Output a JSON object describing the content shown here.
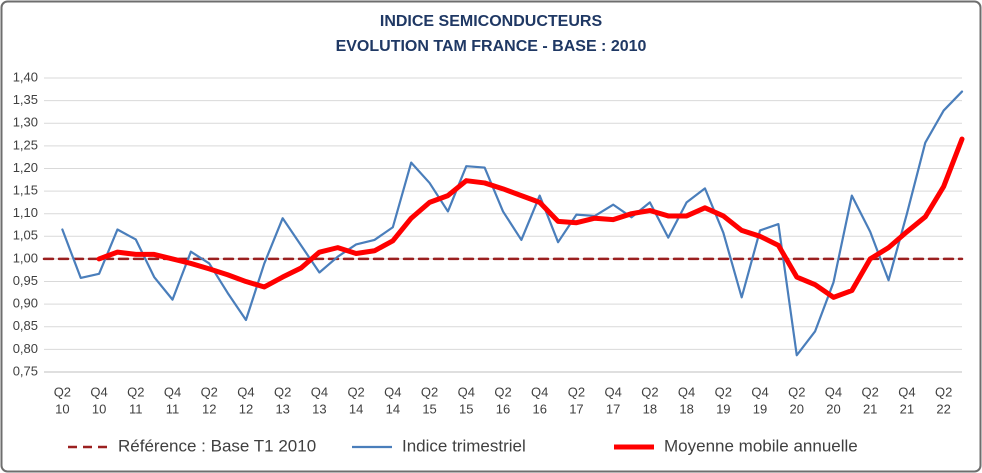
{
  "chart_data": {
    "type": "line",
    "title": "INDICE SEMICONDUCTEURS",
    "subtitle": "EVOLUTION TAM FRANCE - BASE : 2010",
    "categories": [
      null,
      [
        "Q2",
        "10"
      ],
      null,
      [
        "Q4",
        "10"
      ],
      null,
      [
        "Q2",
        "11"
      ],
      null,
      [
        "Q4",
        "11"
      ],
      null,
      [
        "Q2",
        "12"
      ],
      null,
      [
        "Q4",
        "12"
      ],
      null,
      [
        "Q2",
        "13"
      ],
      null,
      [
        "Q4",
        "13"
      ],
      null,
      [
        "Q2",
        "14"
      ],
      null,
      [
        "Q4",
        "14"
      ],
      null,
      [
        "Q2",
        "15"
      ],
      null,
      [
        "Q4",
        "15"
      ],
      null,
      [
        "Q2",
        "16"
      ],
      null,
      [
        "Q4",
        "16"
      ],
      null,
      [
        "Q2",
        "17"
      ],
      null,
      [
        "Q4",
        "17"
      ],
      null,
      [
        "Q2",
        "18"
      ],
      null,
      [
        "Q4",
        "18"
      ],
      null,
      [
        "Q2",
        "19"
      ],
      null,
      [
        "Q4",
        "19"
      ],
      null,
      [
        "Q2",
        "20"
      ],
      null,
      [
        "Q4",
        "20"
      ],
      null,
      [
        "Q2",
        "21"
      ],
      null,
      [
        "Q4",
        "21"
      ],
      null,
      [
        "Q2",
        "22"
      ],
      null
    ],
    "series": [
      {
        "name": "Référence : Base T1 2010",
        "color": "#9b2020",
        "line_style": "dashed",
        "values": [
          1,
          1,
          1,
          1,
          1,
          1,
          1,
          1,
          1,
          1,
          1,
          1,
          1,
          1,
          1,
          1,
          1,
          1,
          1,
          1,
          1,
          1,
          1,
          1,
          1,
          1,
          1,
          1,
          1,
          1,
          1,
          1,
          1,
          1,
          1,
          1,
          1,
          1,
          1,
          1,
          1,
          1,
          1,
          1,
          1,
          1,
          1,
          1,
          1,
          1,
          1
        ]
      },
      {
        "name": "Indice trimestriel",
        "color": "#4a7ebb",
        "line_style": "solid",
        "values": [
          null,
          1.065,
          0.958,
          0.967,
          1.065,
          1.043,
          0.96,
          0.91,
          1.016,
          0.99,
          0.925,
          0.865,
          0.99,
          1.09,
          1.03,
          0.97,
          1.005,
          1.032,
          1.042,
          1.07,
          1.213,
          1.168,
          1.105,
          1.205,
          1.202,
          1.105,
          1.042,
          1.14,
          1.037,
          1.098,
          1.095,
          1.12,
          1.092,
          1.125,
          1.047,
          1.125,
          1.156,
          1.058,
          0.915,
          1.063,
          1.077,
          0.787,
          0.84,
          0.948,
          1.14,
          1.06,
          0.953,
          1.1,
          1.257,
          1.328,
          1.37
        ]
      },
      {
        "name": "Moyenne mobile annuelle",
        "color": "#ff0000",
        "line_style": "solid",
        "values": [
          null,
          null,
          null,
          1.0,
          1.015,
          1.01,
          1.01,
          1.0,
          0.99,
          0.978,
          0.965,
          0.95,
          0.938,
          0.96,
          0.98,
          1.015,
          1.025,
          1.012,
          1.018,
          1.04,
          1.09,
          1.125,
          1.14,
          1.173,
          1.168,
          1.155,
          1.14,
          1.125,
          1.083,
          1.08,
          1.09,
          1.087,
          1.1,
          1.107,
          1.095,
          1.095,
          1.113,
          1.095,
          1.063,
          1.05,
          1.03,
          0.96,
          0.943,
          0.915,
          0.93,
          1.0,
          1.025,
          1.06,
          1.093,
          1.16,
          1.265
        ]
      }
    ],
    "ylim": [
      0.75,
      1.4
    ],
    "yticks": [
      {
        "value": 0.75,
        "label": "0,75"
      },
      {
        "value": 0.8,
        "label": "0,80"
      },
      {
        "value": 0.85,
        "label": "0,85"
      },
      {
        "value": 0.9,
        "label": "0,90"
      },
      {
        "value": 0.95,
        "label": "0,95"
      },
      {
        "value": 1.0,
        "label": "1,00"
      },
      {
        "value": 1.05,
        "label": "1,05"
      },
      {
        "value": 1.1,
        "label": "1,10"
      },
      {
        "value": 1.15,
        "label": "1,15"
      },
      {
        "value": 1.2,
        "label": "1,20"
      },
      {
        "value": 1.25,
        "label": "1,25"
      },
      {
        "value": 1.3,
        "label": "1,30"
      },
      {
        "value": 1.35,
        "label": "1,35"
      },
      {
        "value": 1.4,
        "label": "1,40"
      }
    ],
    "grid": true,
    "legend": "bottom"
  }
}
